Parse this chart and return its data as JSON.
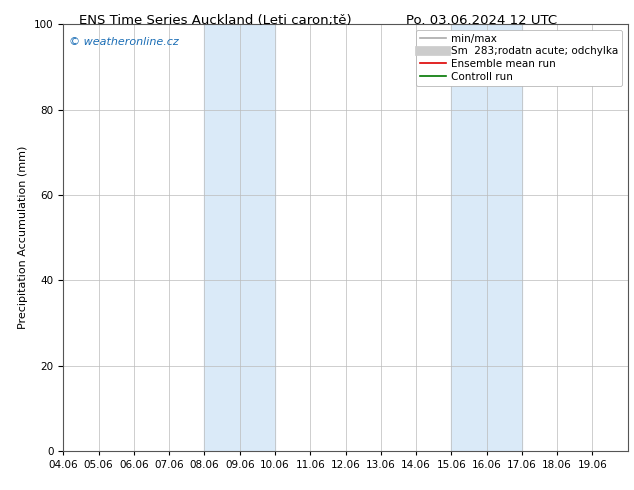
{
  "title_left": "ENS Time Series Auckland (Leti caron;tě)",
  "title_right": "Po. 03.06.2024 12 UTC",
  "ylabel": "Precipitation Accumulation (mm)",
  "ylim": [
    0,
    100
  ],
  "yticks": [
    0,
    20,
    40,
    60,
    80,
    100
  ],
  "xtick_labels": [
    "04.06",
    "05.06",
    "06.06",
    "07.06",
    "08.06",
    "09.06",
    "10.06",
    "11.06",
    "12.06",
    "13.06",
    "14.06",
    "15.06",
    "16.06",
    "17.06",
    "18.06",
    "19.06"
  ],
  "shaded_bands": [
    {
      "start": "08.06",
      "end": "10.06"
    },
    {
      "start": "15.06",
      "end": "17.06"
    }
  ],
  "shade_color": "#daeaf8",
  "shade_alpha": 1.0,
  "bg_color": "#ffffff",
  "watermark_text": "© weatheronline.cz",
  "watermark_color": "#1a6db5",
  "legend_entries": [
    {
      "label": "min/max",
      "color": "#aaaaaa",
      "lw": 1.2,
      "ls": "-"
    },
    {
      "label": "Sm  283;rodatn acute; odchylka",
      "color": "#cccccc",
      "lw": 7,
      "ls": "-"
    },
    {
      "label": "Ensemble mean run",
      "color": "#dd0000",
      "lw": 1.2,
      "ls": "-"
    },
    {
      "label": "Controll run",
      "color": "#007700",
      "lw": 1.2,
      "ls": "-"
    }
  ],
  "grid_color": "#bbbbbb",
  "spine_color": "#555555",
  "title_fontsize": 9.5,
  "label_fontsize": 8,
  "tick_fontsize": 7.5,
  "legend_fontsize": 7.5
}
